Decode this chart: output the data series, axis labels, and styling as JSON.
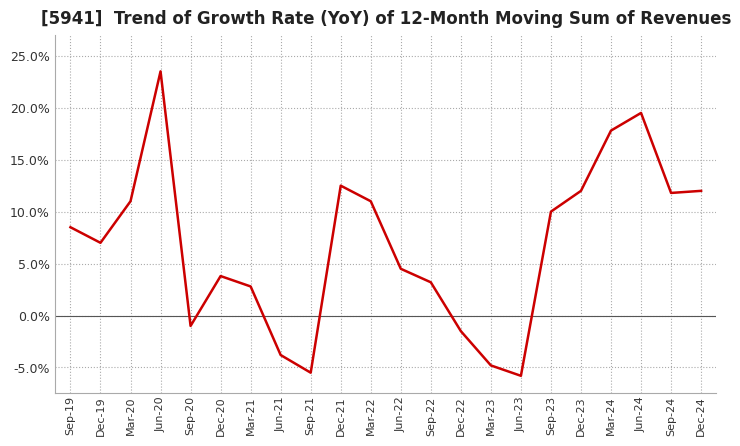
{
  "title": "[5941]  Trend of Growth Rate (YoY) of 12-Month Moving Sum of Revenues",
  "title_fontsize": 12,
  "line_color": "#cc0000",
  "background_color": "#ffffff",
  "grid_color": "#aaaaaa",
  "ylim": [
    -0.075,
    0.27
  ],
  "yticks": [
    -0.05,
    0.0,
    0.05,
    0.1,
    0.15,
    0.2,
    0.25
  ],
  "x_labels": [
    "Sep-19",
    "Dec-19",
    "Mar-20",
    "Jun-20",
    "Sep-20",
    "Dec-20",
    "Mar-21",
    "Jun-21",
    "Sep-21",
    "Dec-21",
    "Mar-22",
    "Jun-22",
    "Sep-22",
    "Dec-22",
    "Mar-23",
    "Jun-23",
    "Sep-23",
    "Dec-23",
    "Mar-24",
    "Jun-24",
    "Sep-24",
    "Dec-24"
  ],
  "y_values": [
    0.085,
    0.07,
    0.11,
    0.235,
    -0.01,
    0.038,
    0.028,
    -0.038,
    -0.055,
    0.125,
    0.11,
    0.045,
    0.032,
    -0.015,
    -0.048,
    -0.058,
    0.1,
    0.12,
    0.178,
    0.195,
    0.118,
    0.12
  ]
}
